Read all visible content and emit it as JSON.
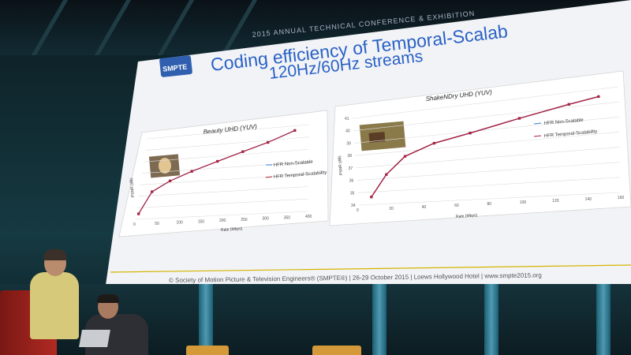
{
  "slide": {
    "banner": "2015 ANNUAL TECHNICAL CONFERENCE & EXHIBITION",
    "logo": "SMPTE",
    "title_line1": "Coding efficiency of Temporal-Scalab",
    "title_line2": "120Hz/60Hz streams",
    "footer": "© Society of Motion Picture & Television Engineers® (SMPTE®) | 26-29 October 2015 | Loews Hollywood Hotel | www.smpte2015.org"
  },
  "chart_data": [
    {
      "type": "line",
      "title": "Beauty UHD (YUV)",
      "xlabel": "Rate (Mbps)",
      "ylabel": "PSNR (dB)",
      "xlim": [
        0,
        400
      ],
      "ylim": [
        30,
        45
      ],
      "xticks": [
        "0",
        "50",
        "100",
        "150",
        "200",
        "250",
        "300",
        "350",
        "400"
      ],
      "series": [
        {
          "name": "HFR Non-Scalable",
          "color": "#3b7fd6",
          "x": [
            5,
            30,
            70,
            120,
            180,
            240,
            300,
            365
          ],
          "y": [
            31,
            35,
            36.8,
            38.3,
            39.8,
            41.2,
            42.5,
            44.2
          ]
        },
        {
          "name": "HFR Temporal-Scalability",
          "color": "#b0203a",
          "x": [
            5,
            30,
            70,
            120,
            180,
            240,
            300,
            365
          ],
          "y": [
            31,
            35,
            36.8,
            38.3,
            39.8,
            41.2,
            42.5,
            44.2
          ]
        }
      ]
    },
    {
      "type": "line",
      "title": "ShakeNDry UHD  (YUV)",
      "xlabel": "Rate (Mbps)",
      "ylabel": "PSNR (dB)",
      "xlim": [
        0,
        160
      ],
      "ylim": [
        34,
        41
      ],
      "xticks": [
        "0",
        "20",
        "40",
        "60",
        "80",
        "100",
        "120",
        "140",
        "160"
      ],
      "yticks": [
        "34",
        "35",
        "36",
        "37",
        "38",
        "39",
        "40",
        "41"
      ],
      "series": [
        {
          "name": "HFR Non-Scalable",
          "color": "#3b7fd6",
          "x": [
            8,
            18,
            30,
            48,
            70,
            100,
            130,
            148
          ],
          "y": [
            34.6,
            36.3,
            37.6,
            38.4,
            38.9,
            39.6,
            40.2,
            40.5
          ]
        },
        {
          "name": "HFR Temporal-Scalability",
          "color": "#b0203a",
          "x": [
            8,
            18,
            30,
            48,
            70,
            100,
            130,
            148
          ],
          "y": [
            34.6,
            36.3,
            37.6,
            38.4,
            38.9,
            39.6,
            40.2,
            40.5
          ]
        }
      ]
    }
  ]
}
